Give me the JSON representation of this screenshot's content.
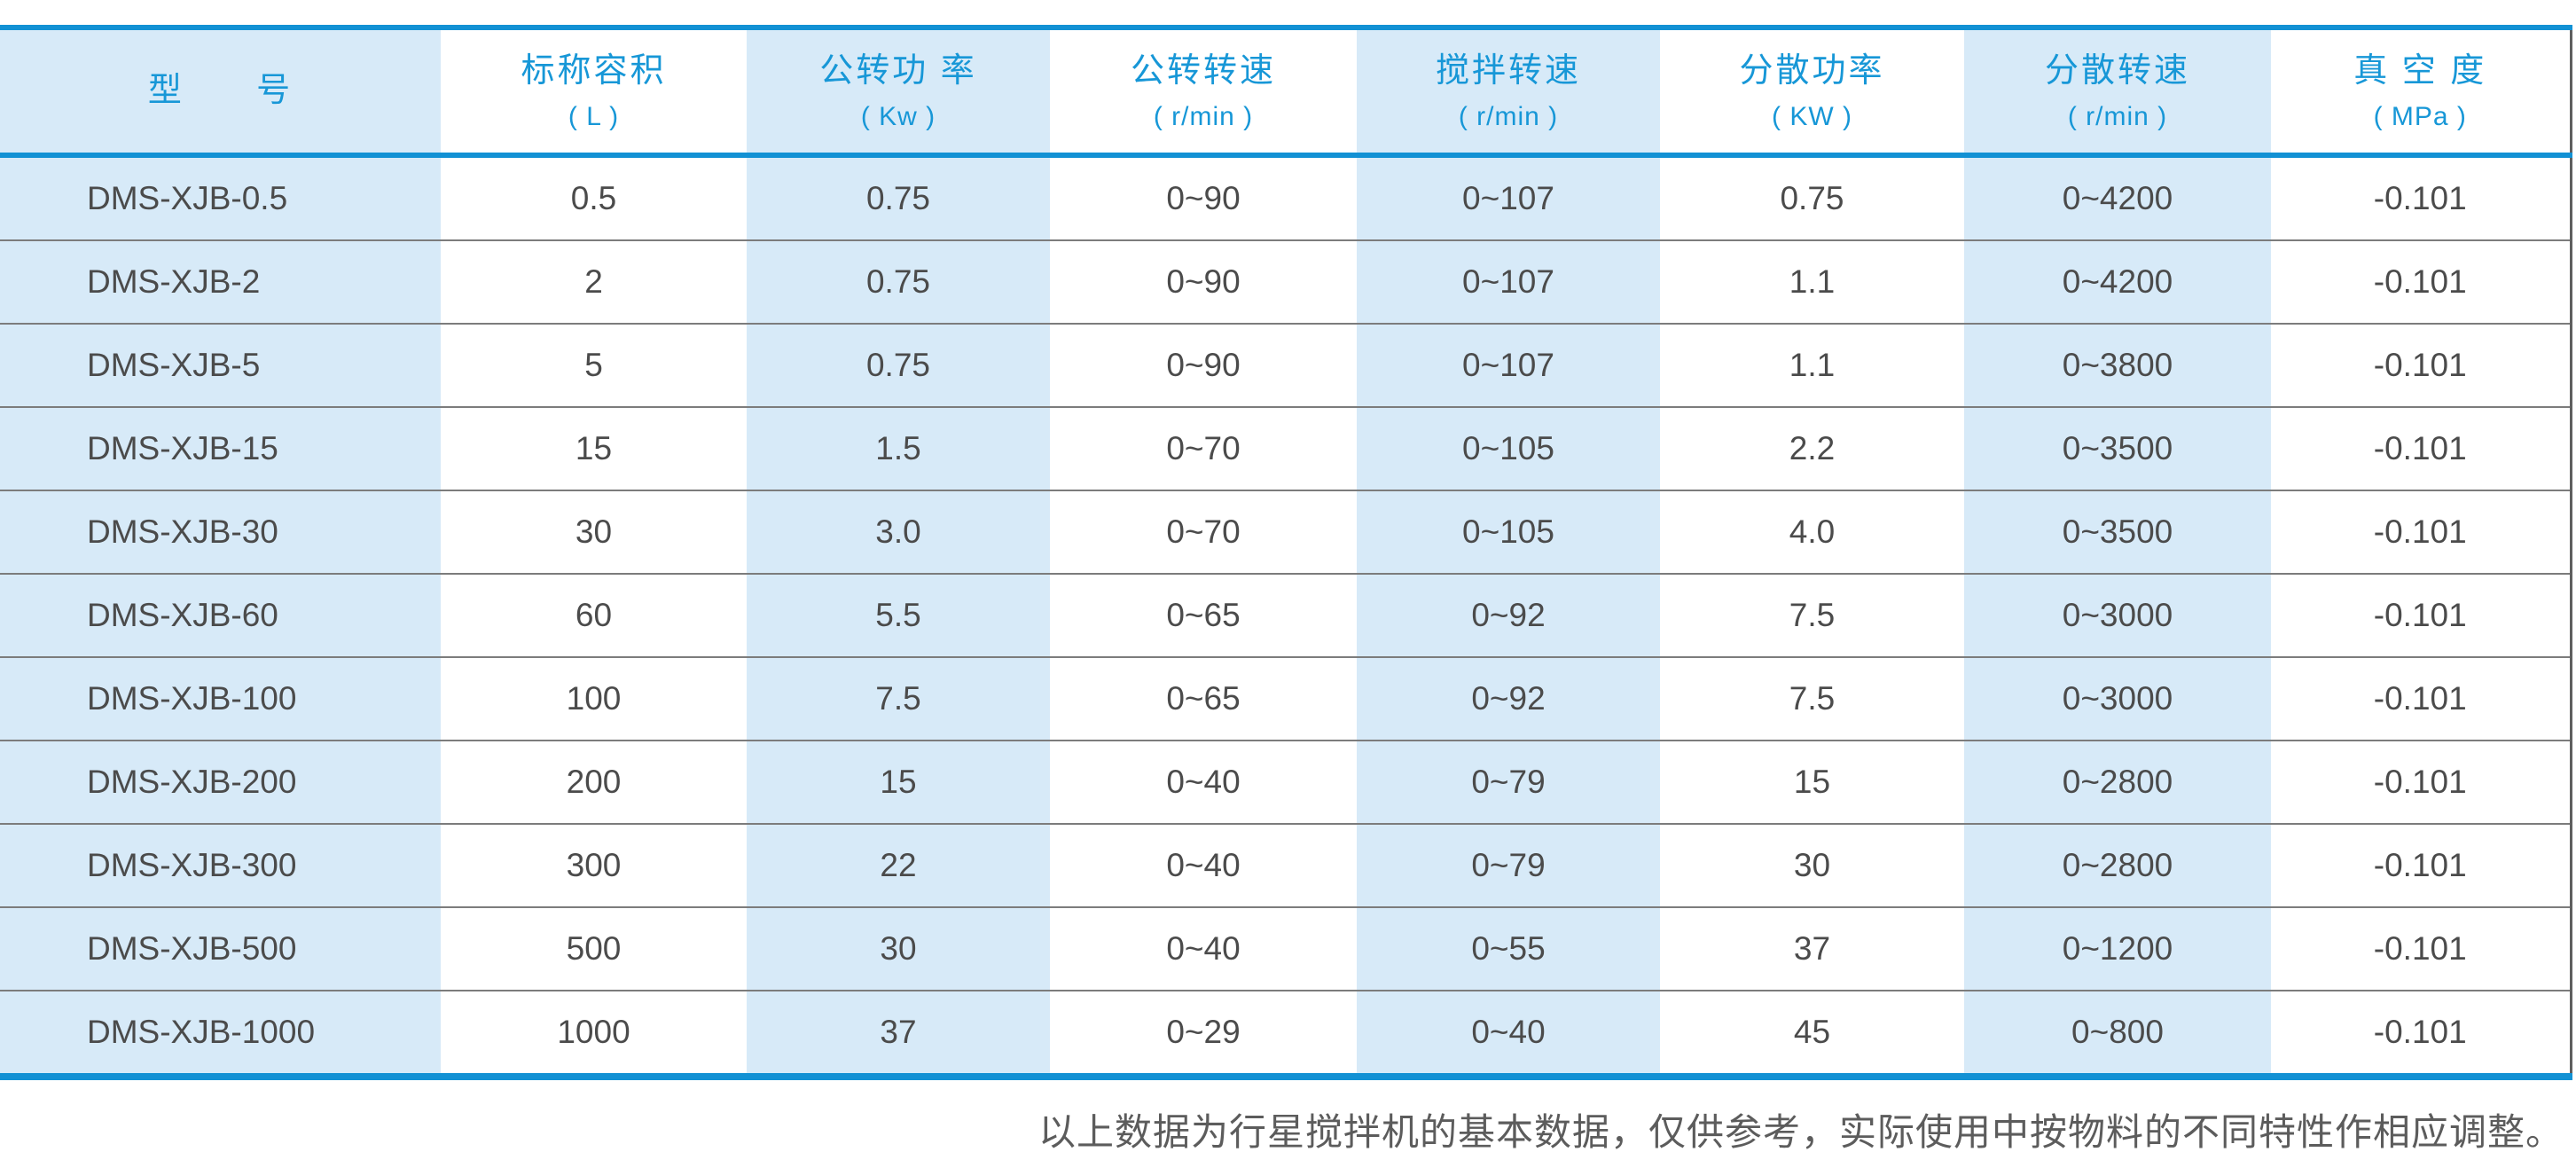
{
  "table": {
    "columns": [
      {
        "label": "型      号",
        "unit": ""
      },
      {
        "label": "标称容积",
        "unit": "( L )"
      },
      {
        "label": "公转功 率",
        "unit": "( Kw )"
      },
      {
        "label": "公转转速",
        "unit": "( r/min )"
      },
      {
        "label": "搅拌转速",
        "unit": "( r/min )"
      },
      {
        "label": "分散功率",
        "unit": "( KW )"
      },
      {
        "label": "分散转速",
        "unit": "( r/min )"
      },
      {
        "label": "真 空 度",
        "unit": "( MPa )"
      }
    ],
    "rows": [
      [
        "DMS-XJB-0.5",
        "0.5",
        "0.75",
        "0~90",
        "0~107",
        "0.75",
        "0~4200",
        "-0.101"
      ],
      [
        "DMS-XJB-2",
        "2",
        "0.75",
        "0~90",
        "0~107",
        "1.1",
        "0~4200",
        "-0.101"
      ],
      [
        "DMS-XJB-5",
        "5",
        "0.75",
        "0~90",
        "0~107",
        "1.1",
        "0~3800",
        "-0.101"
      ],
      [
        "DMS-XJB-15",
        "15",
        "1.5",
        "0~70",
        "0~105",
        "2.2",
        "0~3500",
        "-0.101"
      ],
      [
        "DMS-XJB-30",
        "30",
        "3.0",
        "0~70",
        "0~105",
        "4.0",
        "0~3500",
        "-0.101"
      ],
      [
        "DMS-XJB-60",
        "60",
        "5.5",
        "0~65",
        "0~92",
        "7.5",
        "0~3000",
        "-0.101"
      ],
      [
        "DMS-XJB-100",
        "100",
        "7.5",
        "0~65",
        "0~92",
        "7.5",
        "0~3000",
        "-0.101"
      ],
      [
        "DMS-XJB-200",
        "200",
        "15",
        "0~40",
        "0~79",
        "15",
        "0~2800",
        "-0.101"
      ],
      [
        "DMS-XJB-300",
        "300",
        "22",
        "0~40",
        "0~79",
        "30",
        "0~2800",
        "-0.101"
      ],
      [
        "DMS-XJB-500",
        "500",
        "30",
        "0~40",
        "0~55",
        "37",
        "0~1200",
        "-0.101"
      ],
      [
        "DMS-XJB-1000",
        "1000",
        "37",
        "0~29",
        "0~40",
        "45",
        "0~800",
        "-0.101"
      ]
    ]
  },
  "footnote": "以上数据为行星搅拌机的基本数据，仅供参考，实际使用中按物料的不同特性作相应调整。",
  "colors": {
    "accent_blue": "#1291d4",
    "header_text_blue": "#1797d7",
    "shaded_column": "#d7eaf8",
    "body_text": "#4b4b4b",
    "row_divider": "#7c7c7c",
    "footnote_text": "#5c5c5c"
  }
}
